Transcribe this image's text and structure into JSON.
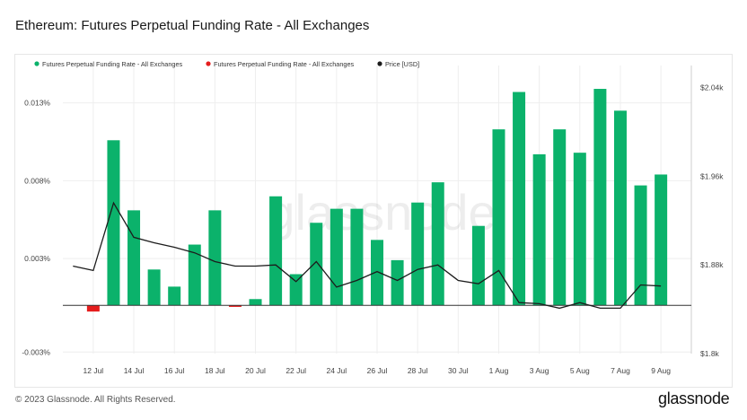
{
  "title": "Ethereum: Futures Perpetual Funding Rate - All Exchanges",
  "footer": {
    "copyright": "© 2023 Glassnode. All Rights Reserved.",
    "logo": "glassnode"
  },
  "watermark": "glassnode",
  "colors": {
    "positive": "#0bb26b",
    "negative": "#e51d1d",
    "price": "#1c1c1c",
    "grid": "#eeeeee",
    "zero_line": "#333333"
  },
  "chart_data": {
    "type": "bar",
    "legend": [
      {
        "label": "Futures Perpetual Funding Rate - All Exchanges",
        "color": "#0bb26b"
      },
      {
        "label": "Futures Perpetual Funding Rate - All Exchanges",
        "color": "#e51d1d"
      },
      {
        "label": "Price [USD]",
        "color": "#1c1c1c"
      }
    ],
    "legend_position": "top-left",
    "grid": true,
    "x_tick_labels": [
      "12 Jul",
      "14 Jul",
      "16 Jul",
      "18 Jul",
      "20 Jul",
      "22 Jul",
      "24 Jul",
      "26 Jul",
      "28 Jul",
      "30 Jul",
      "1 Aug",
      "3 Aug",
      "5 Aug",
      "7 Aug",
      "9 Aug"
    ],
    "categories": [
      "11 Jul",
      "12 Jul",
      "13 Jul",
      "14 Jul",
      "15 Jul",
      "16 Jul",
      "17 Jul",
      "18 Jul",
      "19 Jul",
      "20 Jul",
      "21 Jul",
      "22 Jul",
      "23 Jul",
      "24 Jul",
      "25 Jul",
      "26 Jul",
      "27 Jul",
      "28 Jul",
      "29 Jul",
      "30 Jul",
      "31 Jul",
      "1 Aug",
      "2 Aug",
      "3 Aug",
      "4 Aug",
      "5 Aug",
      "6 Aug",
      "7 Aug",
      "8 Aug",
      "9 Aug",
      "10 Aug"
    ],
    "funding_rate": [
      0,
      -0.0004,
      0.0106,
      0.0061,
      0.0023,
      0.0012,
      0.0039,
      0.0061,
      -0.0001,
      0.0004,
      0.007,
      0.002,
      0.0053,
      0.0062,
      0.0062,
      0.0042,
      0.0029,
      0.0066,
      0.0079,
      0.0,
      0.0051,
      0.0113,
      0.0137,
      0.0097,
      0.0113,
      0.0098,
      0.0139,
      0.0125,
      0.0077,
      0.0084,
      0
    ],
    "price": [
      1879,
      1875,
      1936,
      1905,
      1900,
      1896,
      1891,
      1883,
      1879,
      1879,
      1880,
      1865,
      1883,
      1860,
      1866,
      1874,
      1866,
      1876,
      1880,
      1866,
      1863,
      1875,
      1846,
      1845,
      1841,
      1846,
      1841,
      1841,
      1862,
      1861,
      null
    ],
    "y_left": {
      "ticks": [
        "-0.003%",
        "0.003%",
        "0.008%",
        "0.013%"
      ],
      "values": [
        -0.003,
        0.003,
        0.008,
        0.013
      ],
      "range": [
        -0.0031,
        0.0154
      ],
      "unit": "%"
    },
    "y_right": {
      "ticks": [
        "$1.8k",
        "$1.88k",
        "$1.96k",
        "$2.04k"
      ],
      "values": [
        1800,
        1880,
        1960,
        2040
      ],
      "range": [
        1800,
        2060
      ]
    }
  }
}
